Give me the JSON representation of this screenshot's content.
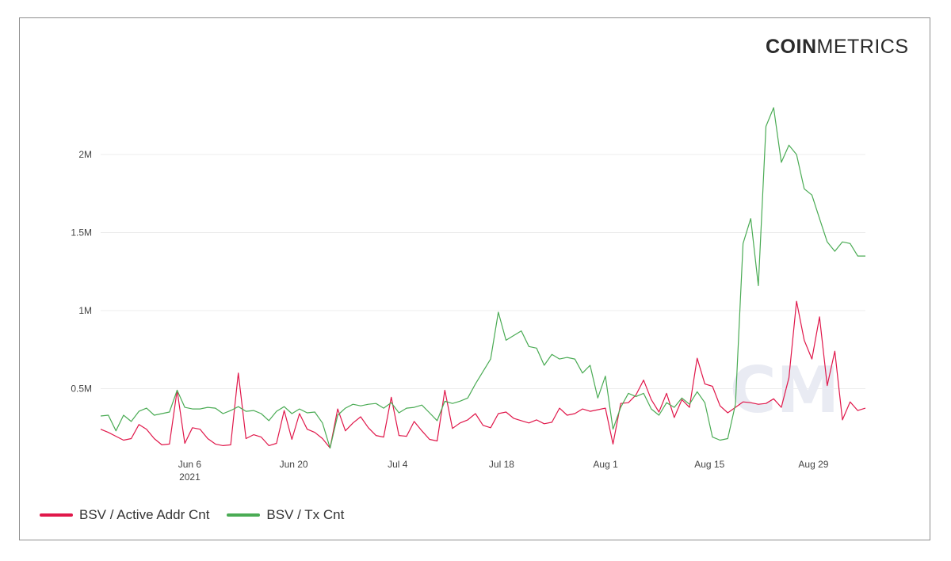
{
  "brand": {
    "bold": "COIN",
    "light": "METRICS"
  },
  "chart_data": {
    "type": "line",
    "title": "",
    "xlabel": "",
    "ylabel": "",
    "x_start": "2021-05-25",
    "x_end": "2021-09-05",
    "ylim": [
      0,
      2400000
    ],
    "y_ticks": [
      {
        "value": 500000,
        "label": "0.5M"
      },
      {
        "value": 1000000,
        "label": "1M"
      },
      {
        "value": 1500000,
        "label": "1.5M"
      },
      {
        "value": 2000000,
        "label": "2M"
      }
    ],
    "x_ticks": [
      {
        "date": "2021-06-06",
        "label": "Jun 6",
        "sublabel": "2021"
      },
      {
        "date": "2021-06-20",
        "label": "Jun 20",
        "sublabel": ""
      },
      {
        "date": "2021-07-04",
        "label": "Jul 4",
        "sublabel": ""
      },
      {
        "date": "2021-07-18",
        "label": "Jul 18",
        "sublabel": ""
      },
      {
        "date": "2021-08-01",
        "label": "Aug 1",
        "sublabel": ""
      },
      {
        "date": "2021-08-15",
        "label": "Aug 15",
        "sublabel": ""
      },
      {
        "date": "2021-08-29",
        "label": "Aug 29",
        "sublabel": ""
      }
    ],
    "grid": true,
    "legend_position": "bottom-left",
    "watermark": "CM",
    "series": [
      {
        "name": "BSV / Active Addr Cnt",
        "color": "#e0174a",
        "values": [
          240000,
          220000,
          195000,
          170000,
          180000,
          270000,
          240000,
          180000,
          140000,
          145000,
          490000,
          150000,
          250000,
          240000,
          180000,
          145000,
          135000,
          140000,
          600000,
          180000,
          205000,
          190000,
          135000,
          150000,
          360000,
          175000,
          340000,
          240000,
          220000,
          180000,
          120000,
          370000,
          230000,
          280000,
          320000,
          250000,
          200000,
          190000,
          445000,
          200000,
          195000,
          290000,
          230000,
          175000,
          165000,
          490000,
          245000,
          280000,
          300000,
          340000,
          265000,
          250000,
          340000,
          350000,
          310000,
          295000,
          280000,
          300000,
          275000,
          285000,
          375000,
          330000,
          340000,
          370000,
          355000,
          365000,
          375000,
          145000,
          405000,
          410000,
          460000,
          555000,
          430000,
          350000,
          470000,
          315000,
          430000,
          380000,
          695000,
          530000,
          515000,
          390000,
          345000,
          380000,
          415000,
          410000,
          400000,
          405000,
          435000,
          380000,
          570000,
          1060000,
          810000,
          690000,
          960000,
          520000,
          740000,
          300000,
          415000,
          360000,
          375000
        ]
      },
      {
        "name": "BSV / Tx Cnt",
        "color": "#4aab54",
        "values": [
          325000,
          330000,
          230000,
          330000,
          290000,
          355000,
          375000,
          330000,
          340000,
          350000,
          490000,
          380000,
          370000,
          370000,
          380000,
          375000,
          340000,
          360000,
          385000,
          355000,
          360000,
          340000,
          295000,
          355000,
          385000,
          340000,
          370000,
          345000,
          350000,
          280000,
          120000,
          330000,
          375000,
          400000,
          390000,
          400000,
          405000,
          375000,
          410000,
          345000,
          375000,
          380000,
          395000,
          345000,
          295000,
          420000,
          405000,
          420000,
          440000,
          530000,
          610000,
          690000,
          990000,
          810000,
          840000,
          870000,
          770000,
          760000,
          650000,
          720000,
          690000,
          700000,
          690000,
          600000,
          650000,
          440000,
          580000,
          240000,
          380000,
          470000,
          450000,
          470000,
          370000,
          330000,
          410000,
          380000,
          440000,
          400000,
          480000,
          410000,
          190000,
          170000,
          180000,
          400000,
          1430000,
          1590000,
          1160000,
          2180000,
          2300000,
          1950000,
          2060000,
          2000000,
          1780000,
          1740000,
          1590000,
          1440000,
          1380000,
          1440000,
          1430000,
          1350000,
          1350000
        ]
      }
    ]
  }
}
